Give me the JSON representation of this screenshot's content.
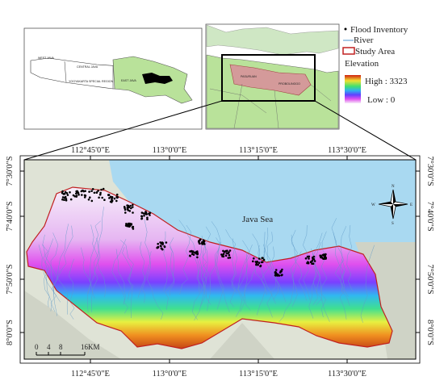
{
  "legend": {
    "items": [
      "Flood Inventory",
      "River",
      "Study Area",
      "Elevation"
    ],
    "high": "High : 3323",
    "low": "Low : 0"
  },
  "inset_left": {
    "labels": [
      "WEST JAVA",
      "CENTRAL JAVA",
      "YOGYAKARTA SPECIAL REGION",
      "EAST JAVA"
    ]
  },
  "inset_right": {
    "labels": [
      "PASURUAN",
      "PROBOLINGGO"
    ]
  },
  "map": {
    "lon_labels": [
      "112°45'0\"E",
      "113°0'0\"E",
      "113°15'0\"E",
      "113°30'0\"E"
    ],
    "lat_labels": [
      "7°30'0\"S",
      "7°40'0\"S",
      "7°50'0\"S",
      "8°0'0\"S"
    ],
    "sea_label": "Java Sea",
    "scale_labels": [
      "0",
      "4",
      "8",
      "16KM"
    ],
    "compass": [
      "N",
      "S",
      "E",
      "W"
    ]
  }
}
